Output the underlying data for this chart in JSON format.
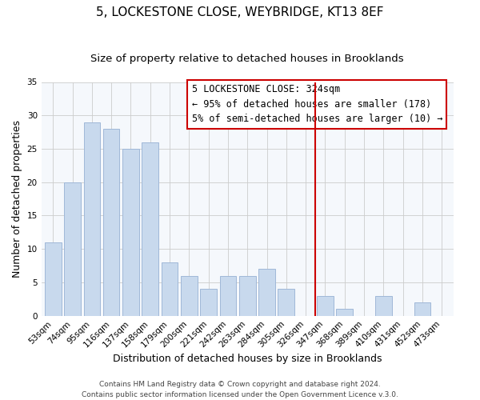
{
  "title": "5, LOCKESTONE CLOSE, WEYBRIDGE, KT13 8EF",
  "subtitle": "Size of property relative to detached houses in Brooklands",
  "xlabel": "Distribution of detached houses by size in Brooklands",
  "ylabel": "Number of detached properties",
  "footer_line1": "Contains HM Land Registry data © Crown copyright and database right 2024.",
  "footer_line2": "Contains public sector information licensed under the Open Government Licence v.3.0.",
  "categories": [
    "53sqm",
    "74sqm",
    "95sqm",
    "116sqm",
    "137sqm",
    "158sqm",
    "179sqm",
    "200sqm",
    "221sqm",
    "242sqm",
    "263sqm",
    "284sqm",
    "305sqm",
    "326sqm",
    "347sqm",
    "368sqm",
    "389sqm",
    "410sqm",
    "431sqm",
    "452sqm",
    "473sqm"
  ],
  "values": [
    11,
    20,
    29,
    28,
    25,
    26,
    8,
    6,
    4,
    6,
    6,
    7,
    4,
    0,
    3,
    1,
    0,
    3,
    0,
    2,
    0
  ],
  "bar_color": "#c8d9ed",
  "bar_edge_color": "#a0b8d8",
  "highlight_line_color": "#cc0000",
  "annotation_title": "5 LOCKESTONE CLOSE: 324sqm",
  "annotation_line1": "← 95% of detached houses are smaller (178)",
  "annotation_line2": "5% of semi-detached houses are larger (10) →",
  "annotation_box_color": "#ffffff",
  "annotation_box_edge": "#cc0000",
  "ylim": [
    0,
    35
  ],
  "yticks": [
    0,
    5,
    10,
    15,
    20,
    25,
    30,
    35
  ],
  "title_fontsize": 11,
  "subtitle_fontsize": 9.5,
  "axis_label_fontsize": 9,
  "tick_fontsize": 7.5,
  "annotation_fontsize": 8.5,
  "footer_fontsize": 6.5
}
